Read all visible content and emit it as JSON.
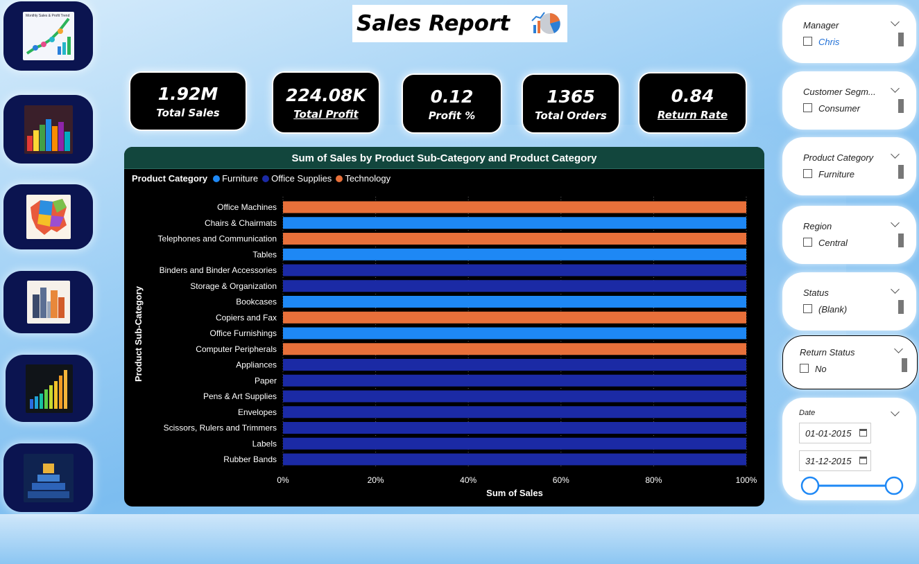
{
  "title": "Sales Report",
  "colors": {
    "furniture": "#1e88f5",
    "office_supplies": "#1b2aa5",
    "technology": "#e8703a"
  },
  "nav": [
    {
      "name": "monthly-sales-trend-thumbnail",
      "caption": "Monthly Sales & Profit Trend"
    },
    {
      "name": "bar-blocks-thumbnail"
    },
    {
      "name": "map-thumbnail"
    },
    {
      "name": "city-thumbnail"
    },
    {
      "name": "bar-chart-thumbnail"
    },
    {
      "name": "trophy-thumbnail"
    }
  ],
  "kpis": {
    "total_sales": {
      "value": "1.92M",
      "label": "Total Sales"
    },
    "total_profit": {
      "value": "224.08K",
      "label": "Total Profit"
    },
    "profit_pct": {
      "value": "0.12",
      "label": "Profit %"
    },
    "total_orders": {
      "value": "1365",
      "label": "Total Orders"
    },
    "return_rate": {
      "value": "0.84",
      "label": "Return Rate"
    }
  },
  "slicers": {
    "manager": {
      "title": "Manager",
      "value": "Chris"
    },
    "segment": {
      "title": "Customer Segm...",
      "value": "Consumer"
    },
    "category": {
      "title": "Product Category",
      "value": "Furniture"
    },
    "region": {
      "title": "Region",
      "value": "Central"
    },
    "status": {
      "title": "Status",
      "value": "(Blank)"
    },
    "return_status": {
      "title": "Return Status",
      "value": "No"
    },
    "date": {
      "title": "Date",
      "start": "01-01-2015",
      "end": "31-12-2015"
    }
  },
  "chart_data": {
    "type": "bar",
    "orientation": "horizontal",
    "stacked_100": true,
    "title": "Sum of Sales by Product Sub-Category and Product Category",
    "xlabel": "Sum of Sales",
    "ylabel": "Product Sub-Category",
    "legend_title": "Product Category",
    "legend": [
      "Furniture",
      "Office Supplies",
      "Technology"
    ],
    "xticks": [
      "0%",
      "20%",
      "40%",
      "60%",
      "80%",
      "100%"
    ],
    "xlim": [
      0,
      100
    ],
    "categories": [
      "Office Machines",
      "Chairs & Chairmats",
      "Telephones and Communication",
      "Tables",
      "Binders and Binder Accessories",
      "Storage & Organization",
      "Bookcases",
      "Copiers and Fax",
      "Office Furnishings",
      "Computer Peripherals",
      "Appliances",
      "Paper",
      "Pens & Art Supplies",
      "Envelopes",
      "Scissors, Rulers and Trimmers",
      "Labels",
      "Rubber Bands"
    ],
    "bar_category": [
      "Technology",
      "Furniture",
      "Technology",
      "Furniture",
      "Office Supplies",
      "Office Supplies",
      "Furniture",
      "Technology",
      "Furniture",
      "Technology",
      "Office Supplies",
      "Office Supplies",
      "Office Supplies",
      "Office Supplies",
      "Office Supplies",
      "Office Supplies",
      "Office Supplies"
    ],
    "values": [
      100,
      100,
      100,
      100,
      100,
      100,
      100,
      100,
      100,
      100,
      100,
      100,
      100,
      100,
      100,
      100,
      100
    ]
  }
}
